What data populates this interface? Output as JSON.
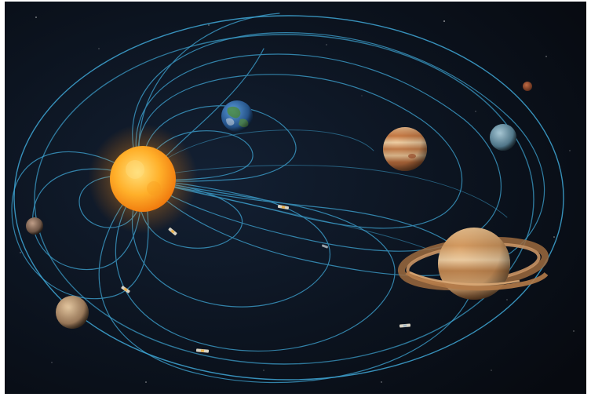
{
  "scene": {
    "background_color": "#0b1019",
    "field_line_color": "#3fa7d6",
    "sun_color": "#ffb22e",
    "bodies": [
      {
        "name": "sun",
        "color": "#ffac2a"
      },
      {
        "name": "earth",
        "color": "#2f6fb5"
      },
      {
        "name": "jupiter",
        "color": "#d9925a"
      },
      {
        "name": "saturn",
        "color": "#d7a06a"
      },
      {
        "name": "uranus",
        "color": "#6f9bb0"
      },
      {
        "name": "mercury",
        "color": "#9a7a66"
      },
      {
        "name": "venus",
        "color": "#c8a27c"
      },
      {
        "name": "mars",
        "color": "#8a4a32"
      }
    ],
    "spacecraft_count": 6
  }
}
